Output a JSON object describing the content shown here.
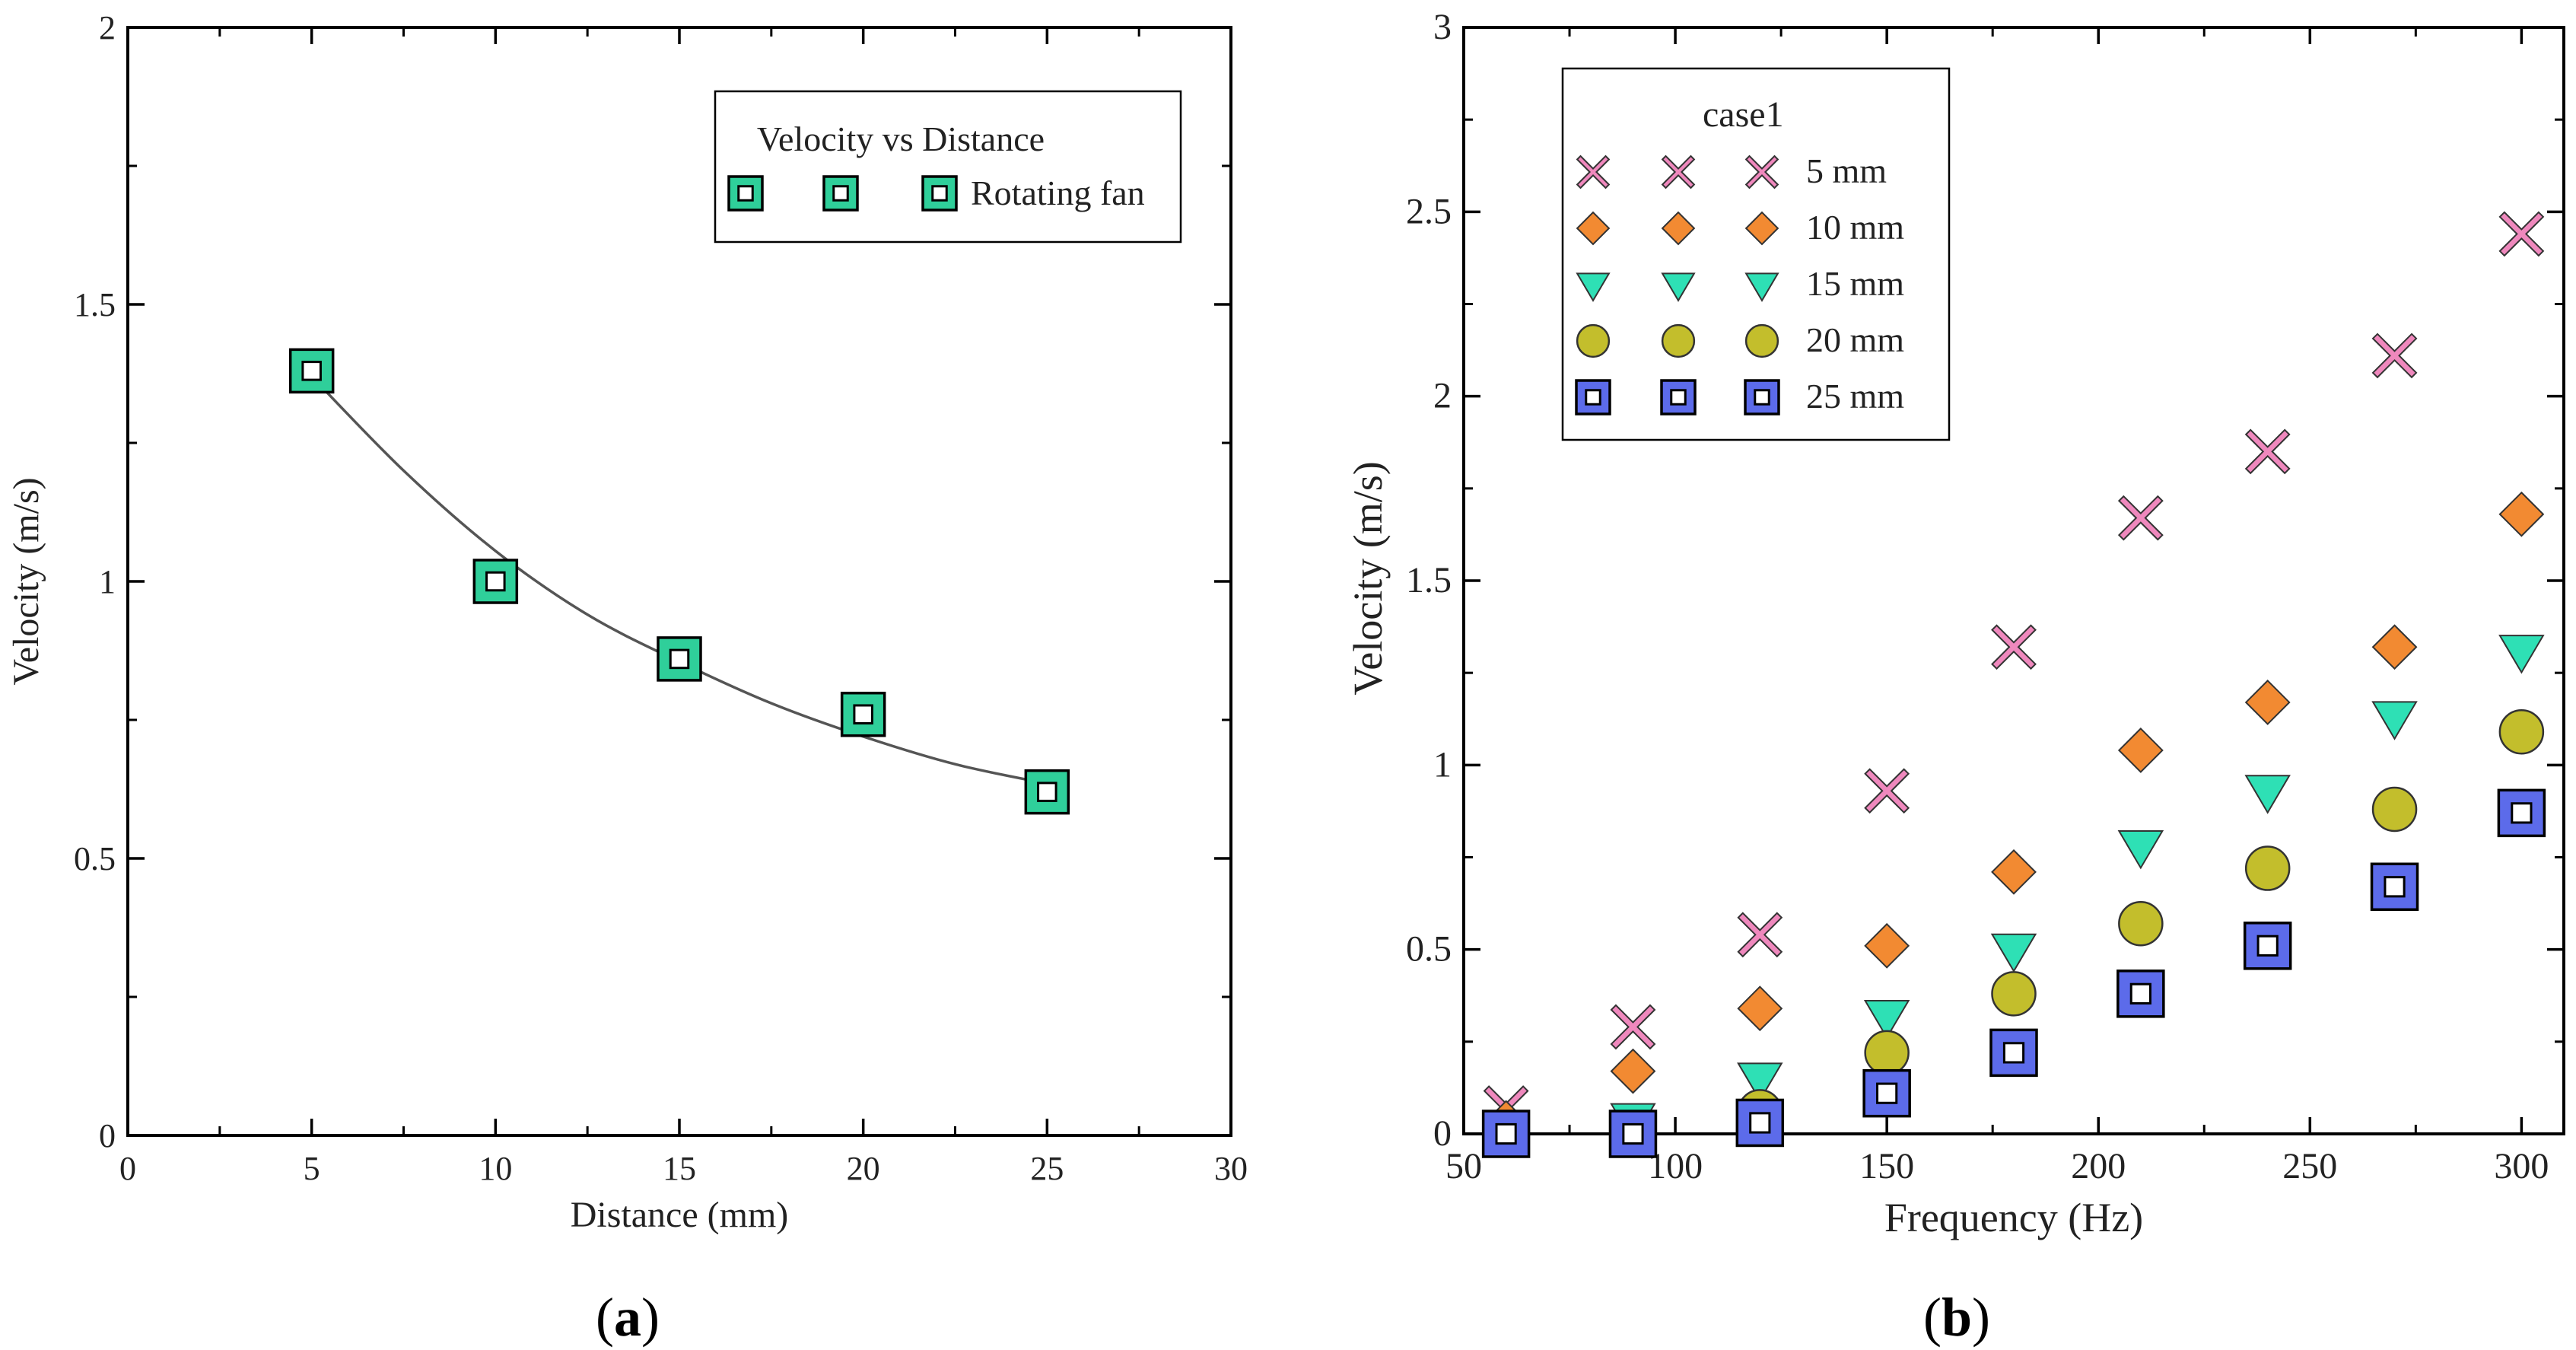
{
  "chart_data": [
    {
      "type": "scatter",
      "panel_label": "a",
      "xlabel": "Distance (mm)",
      "ylabel": "Velocity (m/s)",
      "xlim": [
        0,
        30
      ],
      "ylim": [
        0,
        2
      ],
      "xticks": [
        0,
        5,
        10,
        15,
        20,
        25,
        30
      ],
      "yticks": [
        0,
        0.5,
        1,
        1.5,
        2
      ],
      "ytick_labels": [
        "0",
        "0.5",
        "1",
        "1.5",
        "2"
      ],
      "grid": false,
      "legend": {
        "position": "top-right",
        "title": "Velocity vs Distance",
        "entries": [
          "Rotating fan"
        ]
      },
      "series": [
        {
          "name": "Rotating fan",
          "marker": "square",
          "color": "#2fcf9a",
          "x": [
            5,
            10,
            15,
            20,
            25
          ],
          "values": [
            1.38,
            1.0,
            0.86,
            0.76,
            0.62
          ]
        }
      ],
      "fit_curve": {
        "color": "#555555",
        "x": [
          5,
          7.5,
          10,
          12.5,
          15,
          17.5,
          20,
          22.5,
          25
        ],
        "values": [
          1.37,
          1.2,
          1.055,
          0.94,
          0.855,
          0.78,
          0.72,
          0.67,
          0.635
        ]
      }
    },
    {
      "type": "scatter",
      "panel_label": "b",
      "xlabel": "Frequency (Hz)",
      "ylabel": "Velocity (m/s)",
      "xlim": [
        50,
        310
      ],
      "ylim": [
        0,
        3
      ],
      "xticks": [
        50,
        100,
        150,
        200,
        250,
        300
      ],
      "yticks": [
        0,
        0.5,
        1,
        1.5,
        2,
        2.5,
        3
      ],
      "ytick_labels": [
        "0",
        "0.5",
        "1",
        "1.5",
        "2",
        "2.5",
        "3"
      ],
      "grid": false,
      "legend": {
        "position": "top-left",
        "title": "case1",
        "entries": [
          "5 mm",
          "10 mm",
          "15 mm",
          "20 mm",
          "25 mm"
        ]
      },
      "x": [
        60,
        90,
        120,
        150,
        180,
        210,
        240,
        270,
        300
      ],
      "series": [
        {
          "name": "5 mm",
          "marker": "x",
          "color": "#ef88bd",
          "values": [
            0.07,
            0.29,
            0.54,
            0.93,
            1.32,
            1.67,
            1.85,
            2.11,
            2.44
          ]
        },
        {
          "name": "10 mm",
          "marker": "diamond",
          "color": "#f28a32",
          "values": [
            0.03,
            0.17,
            0.34,
            0.51,
            0.71,
            1.04,
            1.17,
            1.32,
            1.68
          ]
        },
        {
          "name": "15 mm",
          "marker": "triangle-down",
          "color": "#2ee0b5",
          "values": [
            0.01,
            0.04,
            0.15,
            0.32,
            0.5,
            0.78,
            0.93,
            1.13,
            1.31
          ]
        },
        {
          "name": "20 mm",
          "marker": "circle",
          "color": "#c3be2c",
          "values": [
            0.0,
            0.0,
            0.06,
            0.22,
            0.38,
            0.57,
            0.72,
            0.88,
            1.09
          ]
        },
        {
          "name": "25 mm",
          "marker": "square",
          "color": "#5c6bea",
          "values": [
            0.0,
            0.0,
            0.03,
            0.11,
            0.22,
            0.38,
            0.51,
            0.67,
            0.87
          ]
        }
      ]
    }
  ]
}
